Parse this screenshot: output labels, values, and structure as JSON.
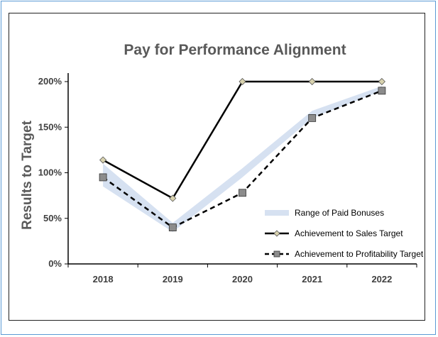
{
  "chart_data": {
    "type": "line",
    "title": "Pay for Performance Alignment",
    "xlabel": "",
    "ylabel": "Results to Target",
    "categories": [
      "2018",
      "2019",
      "2020",
      "2021",
      "2022"
    ],
    "ylim": [
      0,
      200
    ],
    "yticks": [
      0,
      50,
      100,
      150,
      200
    ],
    "ytick_labels": [
      "0%",
      "50%",
      "100%",
      "150%",
      "200%"
    ],
    "range_band": {
      "name": "Range of Paid Bonuses",
      "low": [
        85,
        35,
        95,
        160,
        190
      ],
      "high": [
        110,
        45,
        105,
        168,
        195
      ],
      "color": "#d6e1f1"
    },
    "series": [
      {
        "name": "Achievement to Sales Target",
        "values": [
          114,
          72,
          200,
          200,
          200
        ],
        "color": "#000000",
        "marker_color": "#d8d2ae",
        "dash": false
      },
      {
        "name": "Achievement to Profitability Target",
        "values": [
          95,
          40,
          78,
          160,
          190
        ],
        "color": "#000000",
        "marker_color": "#8c8c8c",
        "dash": true
      }
    ],
    "legend_position": "bottom-right",
    "grid": false
  }
}
